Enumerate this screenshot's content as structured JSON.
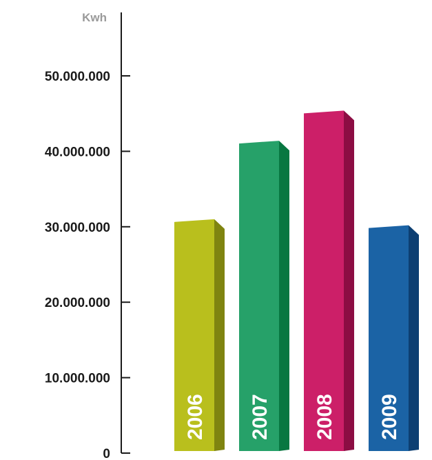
{
  "chart_data": {
    "type": "bar",
    "unit": "Kwh",
    "categories": [
      "2006",
      "2007",
      "2008",
      "2009"
    ],
    "values": [
      31000000,
      41400000,
      45400000,
      30200000
    ],
    "ylim": [
      0,
      55000000
    ],
    "yticks": [
      0,
      10000000,
      20000000,
      30000000,
      40000000,
      50000000
    ],
    "ytick_labels": [
      "0",
      "10.000.000",
      "20.000.000",
      "30.000.000",
      "40.000.000",
      "50.000.000"
    ],
    "grid": false,
    "legend": "none",
    "colors": [
      {
        "front": "#b9bf1d",
        "side": "#7f8410"
      },
      {
        "front": "#26a169",
        "side": "#087741"
      },
      {
        "front": "#cc1f68",
        "side": "#8c0d43"
      },
      {
        "front": "#1b63a5",
        "side": "#0d3f72"
      }
    ]
  }
}
